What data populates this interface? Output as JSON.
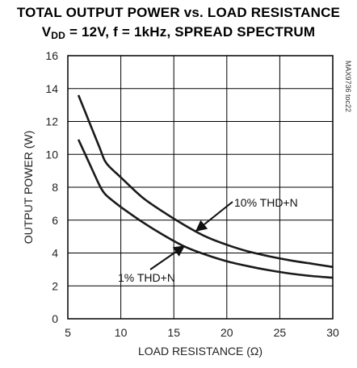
{
  "title_line1": "TOTAL OUTPUT POWER vs. LOAD RESISTANCE",
  "title_line2_prefix": "V",
  "title_line2_sub": "DD",
  "title_line2_rest": " = 12V, f = 1kHz, SPREAD SPECTRUM",
  "doc_code": "MAX9736 toc22",
  "chart_data": {
    "type": "line",
    "xlabel": "LOAD RESISTANCE (Ω)",
    "ylabel": "OUTPUT POWER (W)",
    "xlim": [
      5,
      30
    ],
    "ylim": [
      0,
      16
    ],
    "xticks": [
      5,
      10,
      15,
      20,
      25,
      30
    ],
    "yticks": [
      0,
      2,
      4,
      6,
      8,
      10,
      12,
      14,
      16
    ],
    "grid": true,
    "series": [
      {
        "name": "10% THD+N",
        "x": [
          6,
          7,
          8,
          8.5,
          9,
          10,
          12,
          14,
          16,
          18,
          20,
          22,
          24,
          26,
          28,
          30
        ],
        "y": [
          13.6,
          12.0,
          10.4,
          9.6,
          9.2,
          8.6,
          7.4,
          6.5,
          5.7,
          5.0,
          4.5,
          4.1,
          3.8,
          3.55,
          3.35,
          3.15
        ]
      },
      {
        "name": "1% THD+N",
        "x": [
          6,
          7,
          8,
          8.5,
          9,
          10,
          12,
          14,
          16,
          18,
          20,
          22,
          24,
          26,
          28,
          30
        ],
        "y": [
          10.9,
          9.5,
          8.1,
          7.6,
          7.3,
          6.8,
          5.9,
          5.1,
          4.4,
          3.9,
          3.5,
          3.2,
          2.95,
          2.75,
          2.6,
          2.5
        ]
      }
    ],
    "annotations": [
      {
        "text": "10% THD+N",
        "series": "10% THD+N"
      },
      {
        "text": "1% THD+N",
        "series": "1% THD+N"
      }
    ]
  }
}
